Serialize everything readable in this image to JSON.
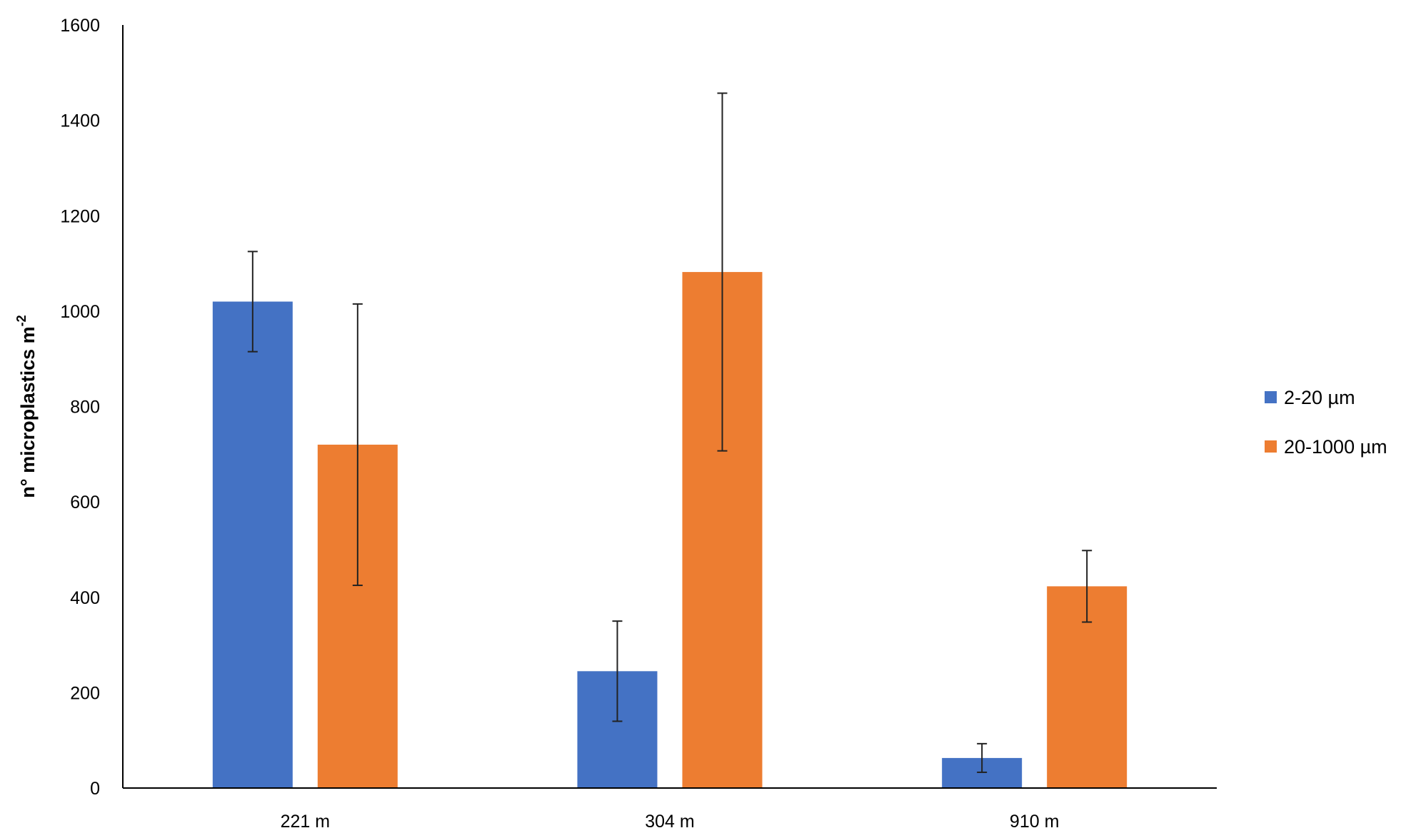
{
  "chart_data": {
    "type": "bar",
    "title": "",
    "xlabel": "",
    "ylabel": "n° microplastics m",
    "ylabel_superscript": "-2",
    "categories": [
      "221 m",
      "304 m",
      "910 m"
    ],
    "ylim": [
      0,
      1600
    ],
    "yticks": [
      0,
      200,
      400,
      600,
      800,
      1000,
      1200,
      1400,
      1600
    ],
    "grid": false,
    "legend_position": "right",
    "series": [
      {
        "name": "2-20 µm",
        "color": "#4472C4",
        "values": [
          1020,
          245,
          63
        ],
        "errors": [
          105,
          105,
          30
        ]
      },
      {
        "name": "20-1000 µm",
        "color": "#ED7D31",
        "values": [
          720,
          1082,
          423
        ],
        "errors": [
          295,
          375,
          75
        ]
      }
    ]
  }
}
